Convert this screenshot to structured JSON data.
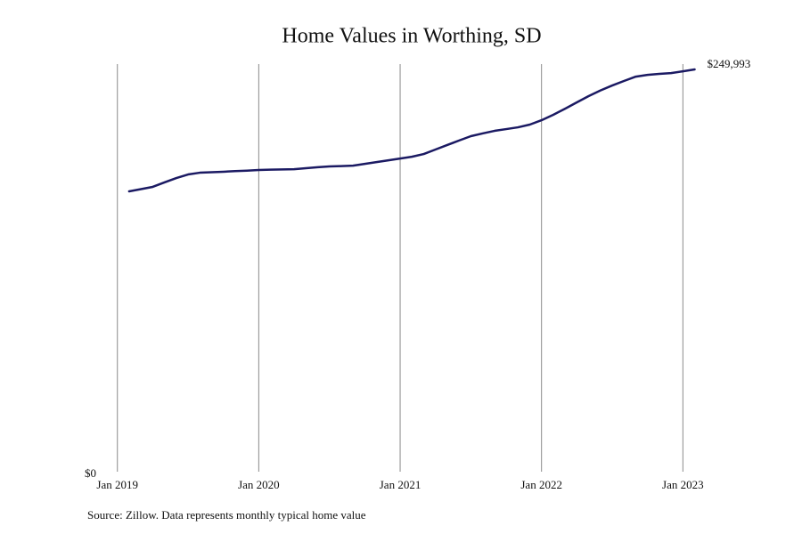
{
  "chart_data": {
    "type": "line",
    "title": "Home Values in Worthing, SD",
    "source": "Source: Zillow. Data represents monthly typical home value",
    "x": [
      2019.083,
      2019.167,
      2019.25,
      2019.333,
      2019.417,
      2019.5,
      2019.583,
      2019.667,
      2019.75,
      2019.833,
      2019.917,
      2020,
      2020.083,
      2020.167,
      2020.25,
      2020.333,
      2020.417,
      2020.5,
      2020.583,
      2020.667,
      2020.75,
      2020.833,
      2020.917,
      2021,
      2021.083,
      2021.167,
      2021.25,
      2021.333,
      2021.417,
      2021.5,
      2021.583,
      2021.667,
      2021.75,
      2021.833,
      2021.917,
      2022,
      2022.083,
      2022.167,
      2022.25,
      2022.333,
      2022.417,
      2022.5,
      2022.583,
      2022.667,
      2022.75,
      2022.833,
      2022.917,
      2023,
      2023.083
    ],
    "series": [
      {
        "color": "#1b1a63",
        "values": [
          174200,
          175600,
          177000,
          179800,
          182500,
          184700,
          185800,
          186100,
          186400,
          186800,
          187100,
          187500,
          187700,
          187800,
          188000,
          188600,
          189200,
          189700,
          189900,
          190200,
          191300,
          192400,
          193500,
          194600,
          195700,
          197400,
          200200,
          203000,
          205800,
          208500,
          210200,
          211800,
          212900,
          214000,
          215700,
          218400,
          221800,
          225600,
          229500,
          233400,
          236900,
          240000,
          242800,
          245500,
          246600,
          247200,
          247700,
          248800,
          249993
        ],
        "value_labels": [
          null,
          null,
          null,
          null,
          null,
          null,
          null,
          null,
          null,
          null,
          null,
          null,
          null,
          null,
          null,
          null,
          null,
          null,
          null,
          null,
          null,
          null,
          null,
          null,
          null,
          null,
          null,
          null,
          null,
          null,
          null,
          null,
          null,
          null,
          null,
          null,
          null,
          null,
          null,
          null,
          null,
          null,
          null,
          null,
          null,
          null,
          null,
          null,
          "$249,993"
        ]
      }
    ],
    "xlim": [
      2018.8,
      2023.25
    ],
    "xticks": [
      {
        "value": 2019,
        "label": "Jan 2019"
      },
      {
        "value": 2020,
        "label": "Jan 2020"
      },
      {
        "value": 2021,
        "label": "Jan 2021"
      },
      {
        "value": 2022,
        "label": "Jan 2022"
      },
      {
        "value": 2023,
        "label": "Jan 2023"
      }
    ],
    "ylim": [
      0,
      253300
    ],
    "yticks": [
      {
        "value": 0,
        "label": "$0"
      }
    ],
    "grid": "x"
  }
}
